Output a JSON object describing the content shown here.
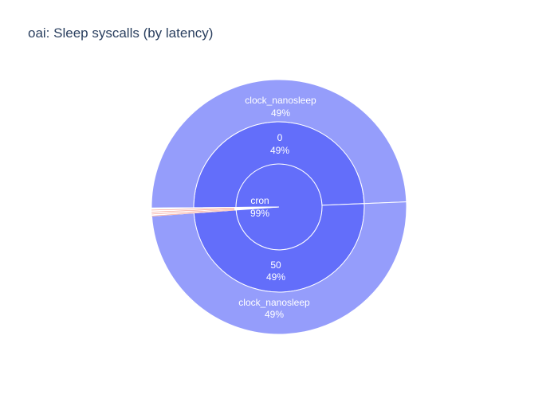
{
  "chart_data": {
    "type": "sunburst",
    "title": "oai: Sleep syscalls (by latency)",
    "colors": {
      "root": "#636efa",
      "level1": "#636efa",
      "level2": "#959dfb",
      "minor": "#ef553b",
      "border": "#ffffff"
    },
    "root": {
      "label": "cron",
      "percent": "99%",
      "share": 0.99
    },
    "nodes": [
      {
        "label": "0",
        "percent": "49%",
        "share": 0.495,
        "children": [
          {
            "label": "clock_nanosleep",
            "percent": "49%",
            "share": 0.495
          }
        ]
      },
      {
        "label": "50",
        "percent": "49%",
        "share": 0.495,
        "children": [
          {
            "label": "clock_nanosleep",
            "percent": "49%",
            "share": 0.495
          }
        ]
      }
    ],
    "minor_share": 0.01
  }
}
